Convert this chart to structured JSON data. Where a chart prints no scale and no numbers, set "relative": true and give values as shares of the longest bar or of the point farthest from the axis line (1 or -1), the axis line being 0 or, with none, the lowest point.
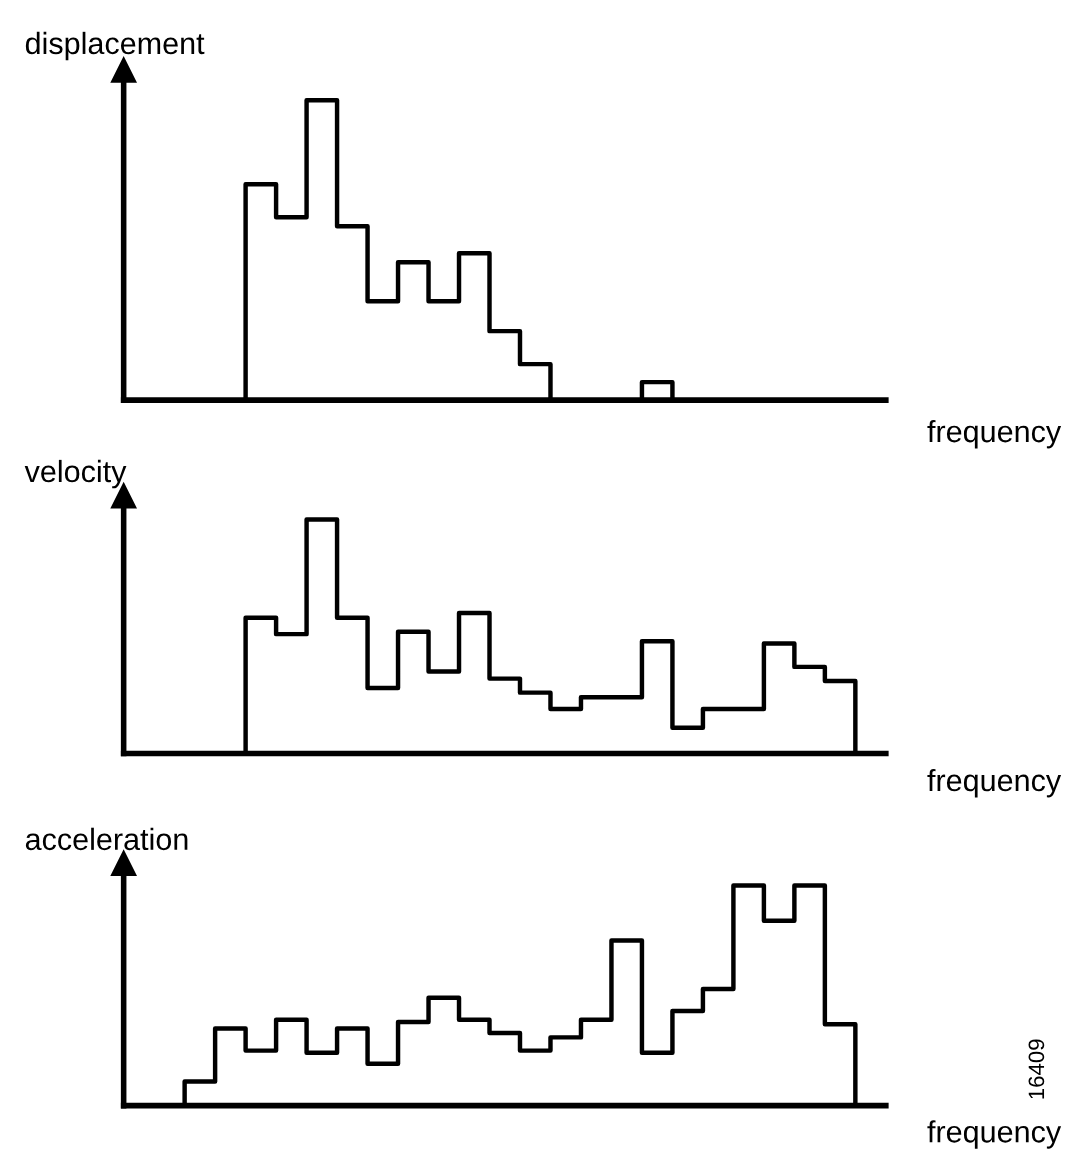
{
  "chart_data": [
    {
      "type": "step",
      "relative": true,
      "ylabel": "displacement",
      "xlabel": "frequency",
      "categories": [
        null,
        null,
        null,
        null,
        null,
        null,
        null,
        null,
        null,
        null,
        null,
        null,
        null,
        null,
        null,
        null,
        null,
        null,
        null,
        null,
        null,
        null,
        null,
        null,
        null,
        null
      ],
      "series": [
        {
          "color": "#000000",
          "values": [
            0,
            0,
            0,
            0,
            0.72,
            0.61,
            1,
            0.58,
            0.33,
            0.46,
            0.33,
            0.49,
            0.23,
            0.12,
            0,
            0,
            0,
            0.06,
            0,
            0,
            0,
            0,
            0,
            0,
            0,
            0
          ]
        }
      ]
    },
    {
      "type": "step",
      "relative": true,
      "ylabel": "velocity",
      "xlabel": "frequency",
      "categories": [
        null,
        null,
        null,
        null,
        null,
        null,
        null,
        null,
        null,
        null,
        null,
        null,
        null,
        null,
        null,
        null,
        null,
        null,
        null,
        null,
        null,
        null,
        null,
        null,
        null,
        null
      ],
      "series": [
        {
          "color": "#000000",
          "values": [
            0,
            0,
            0,
            0,
            0.58,
            0.51,
            1,
            0.58,
            0.28,
            0.52,
            0.35,
            0.6,
            0.32,
            0.26,
            0.19,
            0.24,
            0.24,
            0.48,
            0.11,
            0.19,
            0.19,
            0.47,
            0.37,
            0.31,
            0,
            0
          ]
        }
      ]
    },
    {
      "type": "step",
      "relative": true,
      "ylabel": "acceleration",
      "xlabel": "frequency",
      "annotations": [
        "16409"
      ],
      "categories": [
        null,
        null,
        null,
        null,
        null,
        null,
        null,
        null,
        null,
        null,
        null,
        null,
        null,
        null,
        null,
        null,
        null,
        null,
        null,
        null,
        null,
        null,
        null,
        null,
        null,
        null
      ],
      "series": [
        {
          "color": "#000000",
          "values": [
            0,
            0,
            0.11,
            0.35,
            0.25,
            0.39,
            0.24,
            0.35,
            0.19,
            0.38,
            0.49,
            0.39,
            0.33,
            0.25,
            0.31,
            0.39,
            0.75,
            0.24,
            0.43,
            0.53,
            1,
            0.84,
            1,
            0.37,
            0,
            0
          ]
        }
      ]
    }
  ]
}
